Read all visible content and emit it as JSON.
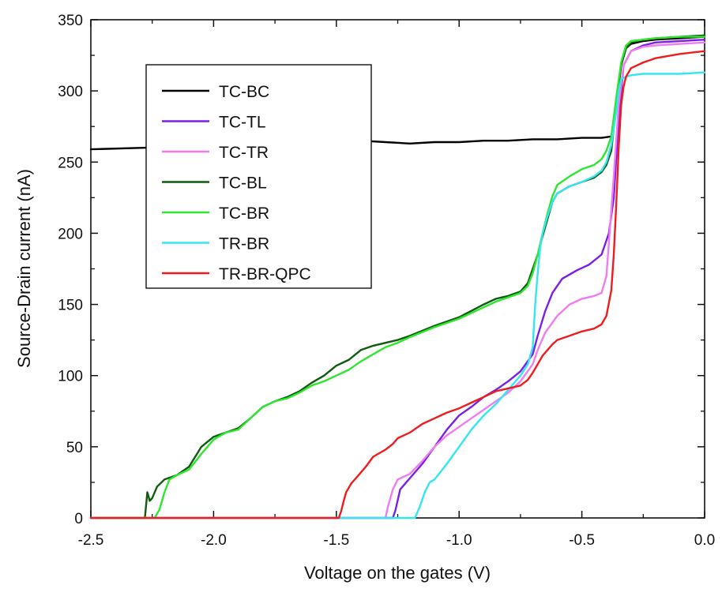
{
  "chart_data": {
    "type": "line",
    "xlabel": "Voltage on the gates (V)",
    "ylabel": "Source-Drain current (nA)",
    "xlim": [
      -2.5,
      0.0
    ],
    "ylim": [
      0,
      350
    ],
    "xticks": [
      -2.5,
      -2.0,
      -1.5,
      -1.0,
      -0.5,
      0.0
    ],
    "xtick_labels": [
      "-2.5",
      "-2.0",
      "-1.5",
      "-1.0",
      "-0.5",
      "0.0"
    ],
    "yticks": [
      0,
      50,
      100,
      150,
      200,
      250,
      300,
      350
    ],
    "ytick_labels": [
      "0",
      "50",
      "100",
      "150",
      "200",
      "250",
      "300",
      "350"
    ],
    "grid": false,
    "legend_position": "top-left",
    "series": [
      {
        "name": "TC-BC",
        "color": "#000000",
        "x": [
          -2.5,
          -2.3,
          -2.1,
          -1.9,
          -1.7,
          -1.5,
          -1.4,
          -1.3,
          -1.2,
          -1.1,
          -1.0,
          -0.9,
          -0.8,
          -0.7,
          -0.6,
          -0.5,
          -0.42,
          -0.38,
          -0.36,
          -0.34,
          -0.32,
          -0.3,
          -0.25,
          -0.2,
          -0.1,
          0.0
        ],
        "y": [
          259,
          260,
          261,
          262,
          263,
          264,
          265,
          264,
          263,
          264,
          264,
          265,
          265,
          266,
          266,
          267,
          267,
          268,
          290,
          318,
          330,
          333,
          335,
          336,
          337,
          338
        ]
      },
      {
        "name": "TC-TL",
        "color": "#7b1fe8",
        "x": [
          -2.5,
          -1.3,
          -1.27,
          -1.26,
          -1.24,
          -1.2,
          -1.15,
          -1.1,
          -1.05,
          -1.0,
          -0.95,
          -0.9,
          -0.85,
          -0.8,
          -0.75,
          -0.7,
          -0.68,
          -0.65,
          -0.62,
          -0.58,
          -0.52,
          -0.47,
          -0.42,
          -0.39,
          -0.37,
          -0.35,
          -0.33,
          -0.3,
          -0.25,
          -0.2,
          -0.1,
          0.0
        ],
        "y": [
          0,
          0,
          0,
          5,
          20,
          28,
          38,
          50,
          62,
          72,
          78,
          85,
          90,
          96,
          103,
          115,
          128,
          145,
          158,
          168,
          174,
          178,
          185,
          200,
          225,
          280,
          318,
          328,
          332,
          334,
          335,
          336
        ]
      },
      {
        "name": "TC-TR",
        "color": "#f07cf0",
        "x": [
          -2.5,
          -1.3,
          -1.29,
          -1.27,
          -1.25,
          -1.2,
          -1.15,
          -1.1,
          -1.05,
          -1.0,
          -0.95,
          -0.9,
          -0.85,
          -0.8,
          -0.75,
          -0.7,
          -0.68,
          -0.65,
          -0.6,
          -0.55,
          -0.5,
          -0.45,
          -0.42,
          -0.4,
          -0.37,
          -0.35,
          -0.33,
          -0.3,
          -0.25,
          -0.2,
          -0.1,
          0.0
        ],
        "y": [
          0,
          0,
          8,
          20,
          27,
          31,
          40,
          50,
          58,
          64,
          70,
          76,
          82,
          88,
          96,
          108,
          118,
          130,
          142,
          150,
          154,
          156,
          158,
          170,
          240,
          290,
          318,
          328,
          331,
          332,
          333,
          334
        ]
      },
      {
        "name": "TC-BL",
        "color": "#0e5c0e",
        "x": [
          -2.5,
          -2.28,
          -2.27,
          -2.26,
          -2.25,
          -2.23,
          -2.2,
          -2.15,
          -2.1,
          -2.05,
          -2.0,
          -1.95,
          -1.9,
          -1.85,
          -1.8,
          -1.75,
          -1.7,
          -1.65,
          -1.6,
          -1.55,
          -1.5,
          -1.45,
          -1.4,
          -1.35,
          -1.3,
          -1.25,
          -1.2,
          -1.1,
          -1.0,
          -0.9,
          -0.85,
          -0.8,
          -0.75,
          -0.72,
          -0.7,
          -0.68,
          -0.66,
          -0.64,
          -0.62,
          -0.6,
          -0.55,
          -0.5,
          -0.45,
          -0.42,
          -0.4,
          -0.38,
          -0.36,
          -0.34,
          -0.32,
          -0.3,
          -0.25,
          -0.2,
          -0.1,
          0.0
        ],
        "y": [
          0,
          0,
          18,
          12,
          14,
          22,
          27,
          30,
          36,
          50,
          57,
          60,
          63,
          70,
          78,
          82,
          85,
          89,
          95,
          100,
          107,
          111,
          118,
          121,
          123,
          125,
          128,
          135,
          141,
          150,
          154,
          156,
          159,
          165,
          175,
          185,
          198,
          210,
          222,
          228,
          233,
          236,
          239,
          243,
          248,
          258,
          290,
          318,
          330,
          334,
          336,
          337,
          338,
          339
        ]
      },
      {
        "name": "TC-BR",
        "color": "#2ee62e",
        "x": [
          -2.5,
          -2.24,
          -2.22,
          -2.2,
          -2.18,
          -2.15,
          -2.1,
          -2.05,
          -2.0,
          -1.95,
          -1.9,
          -1.85,
          -1.8,
          -1.75,
          -1.7,
          -1.65,
          -1.6,
          -1.55,
          -1.5,
          -1.45,
          -1.4,
          -1.35,
          -1.3,
          -1.25,
          -1.2,
          -1.1,
          -1.0,
          -0.9,
          -0.85,
          -0.8,
          -0.75,
          -0.72,
          -0.7,
          -0.68,
          -0.66,
          -0.64,
          -0.62,
          -0.6,
          -0.55,
          -0.5,
          -0.45,
          -0.42,
          -0.4,
          -0.38,
          -0.36,
          -0.34,
          -0.32,
          -0.3,
          -0.25,
          -0.2,
          -0.1,
          0.0
        ],
        "y": [
          0,
          0,
          6,
          18,
          27,
          30,
          34,
          45,
          55,
          60,
          62,
          70,
          78,
          82,
          84,
          88,
          93,
          96,
          100,
          104,
          110,
          115,
          120,
          123,
          127,
          134,
          140,
          148,
          152,
          155,
          158,
          163,
          172,
          185,
          200,
          214,
          226,
          234,
          240,
          245,
          248,
          252,
          258,
          268,
          295,
          320,
          332,
          335,
          336,
          337,
          338,
          338
        ]
      },
      {
        "name": "TR-BR",
        "color": "#33e6f2",
        "x": [
          -2.5,
          -1.5,
          -1.2,
          -1.18,
          -1.16,
          -1.14,
          -1.12,
          -1.1,
          -1.05,
          -1.0,
          -0.95,
          -0.9,
          -0.85,
          -0.8,
          -0.75,
          -0.72,
          -0.7,
          -0.69,
          -0.68,
          -0.67,
          -0.66,
          -0.64,
          -0.62,
          -0.6,
          -0.55,
          -0.5,
          -0.45,
          -0.42,
          -0.4,
          -0.38,
          -0.36,
          -0.35,
          -0.34,
          -0.32,
          -0.3,
          -0.25,
          -0.2,
          -0.1,
          0.0
        ],
        "y": [
          0,
          0,
          0,
          0,
          8,
          18,
          25,
          27,
          38,
          50,
          62,
          72,
          80,
          90,
          100,
          108,
          120,
          150,
          172,
          190,
          200,
          212,
          222,
          228,
          233,
          236,
          240,
          244,
          250,
          262,
          285,
          300,
          308,
          310,
          311,
          312,
          312,
          312,
          313
        ]
      },
      {
        "name": "TR-BR-QPC",
        "color": "#ee1c1c",
        "x": [
          -2.5,
          -1.49,
          -1.48,
          -1.47,
          -1.46,
          -1.44,
          -1.42,
          -1.4,
          -1.38,
          -1.35,
          -1.3,
          -1.27,
          -1.25,
          -1.2,
          -1.15,
          -1.1,
          -1.05,
          -1.0,
          -0.95,
          -0.9,
          -0.85,
          -0.8,
          -0.75,
          -0.72,
          -0.7,
          -0.68,
          -0.66,
          -0.64,
          -0.62,
          -0.6,
          -0.55,
          -0.5,
          -0.45,
          -0.42,
          -0.4,
          -0.38,
          -0.37,
          -0.36,
          -0.35,
          -0.34,
          -0.33,
          -0.32,
          -0.3,
          -0.25,
          -0.2,
          -0.1,
          0.0
        ],
        "y": [
          0,
          0,
          5,
          12,
          18,
          24,
          28,
          32,
          36,
          43,
          48,
          52,
          56,
          60,
          66,
          70,
          74,
          77,
          81,
          85,
          89,
          91,
          93,
          97,
          102,
          108,
          114,
          118,
          122,
          125,
          128,
          131,
          133,
          136,
          142,
          160,
          185,
          220,
          260,
          290,
          303,
          310,
          316,
          320,
          323,
          326,
          328
        ]
      }
    ]
  }
}
